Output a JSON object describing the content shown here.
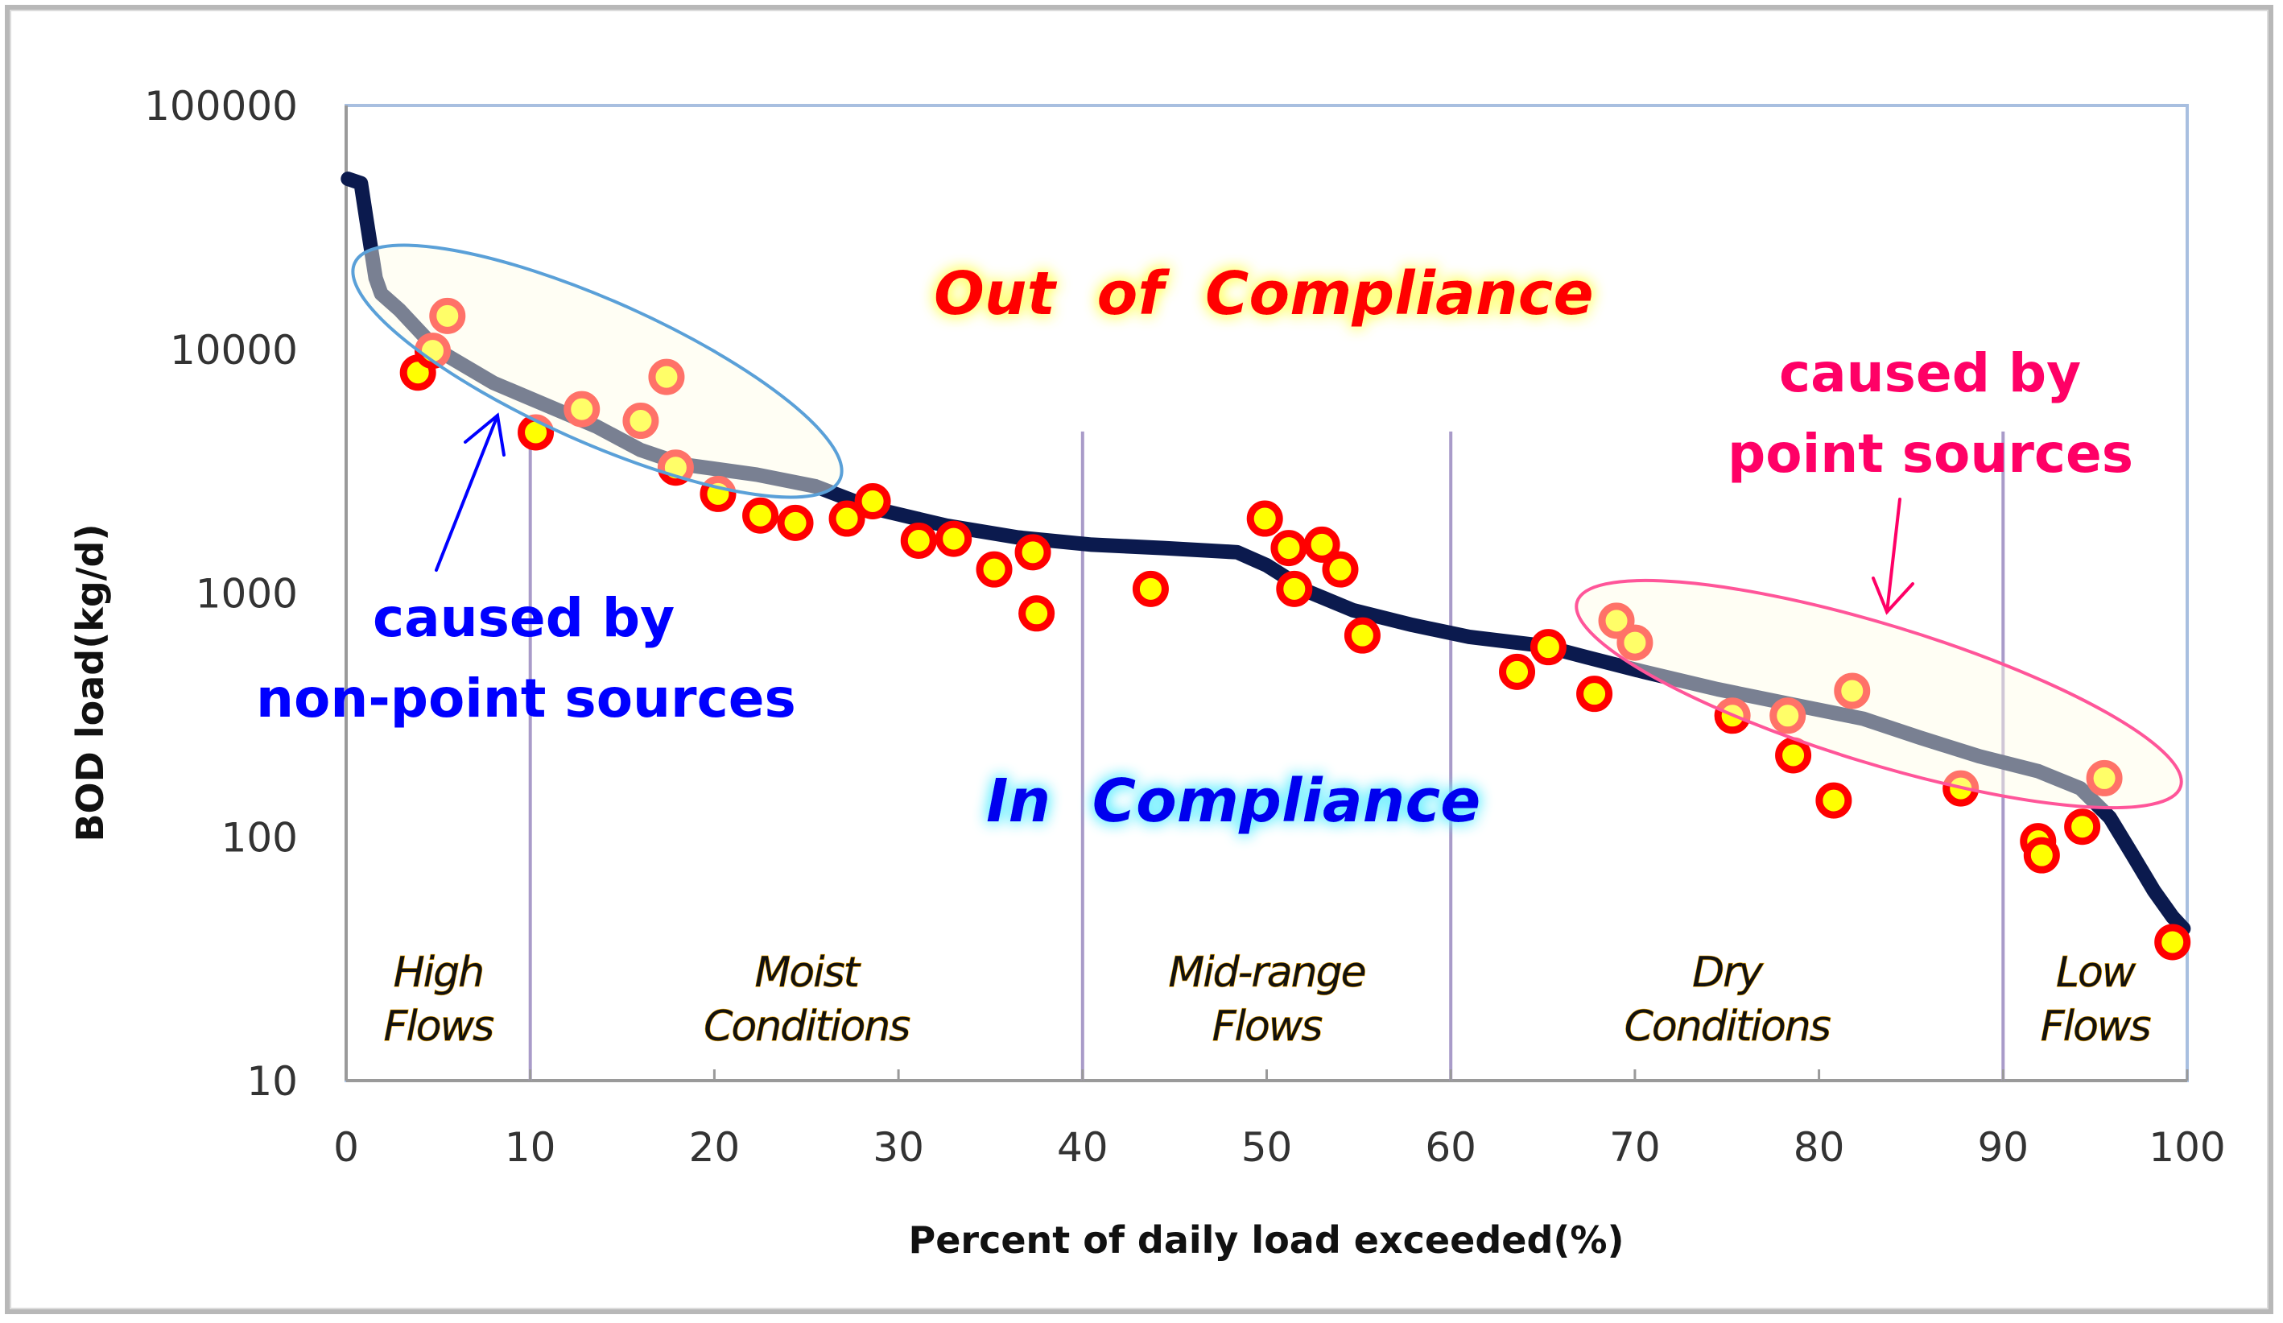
{
  "chart_data": {
    "type": "scatter",
    "title": "",
    "xlabel": "Percent of daily load exceeded(%)",
    "ylabel": "BOD load(kg/d)",
    "xlim": [
      0,
      100
    ],
    "ylim": [
      10,
      100000
    ],
    "yscale": "log",
    "x_ticks": [
      0,
      10,
      20,
      30,
      40,
      50,
      60,
      70,
      80,
      90,
      100
    ],
    "x_tick_labels": [
      "0",
      "10",
      "20",
      "30",
      "40",
      "50",
      "60",
      "70",
      "80",
      "90",
      "100"
    ],
    "y_ticks": [
      10,
      100,
      1000,
      10000,
      100000
    ],
    "y_tick_labels": [
      "10",
      "100",
      "1000",
      "10000",
      "100000"
    ],
    "grid": false,
    "zone_boundaries": [
      10,
      40,
      60,
      90
    ],
    "zones": [
      {
        "line1": "High",
        "line2": "Flows",
        "x_center": 5
      },
      {
        "line1": "Moist",
        "line2": "Conditions",
        "x_center": 25
      },
      {
        "line1": "Mid-range",
        "line2": "Flows",
        "x_center": 50
      },
      {
        "line1": "Dry",
        "line2": "Conditions",
        "x_center": 75
      },
      {
        "line1": "Low",
        "line2": "Flows",
        "x_center": 95
      }
    ],
    "series": [
      {
        "name": "Load duration curve",
        "kind": "line",
        "color": "#0b1a4e",
        "x": [
          0.1,
          0.8,
          1.1,
          1.6,
          1.9,
          2.9,
          4.9,
          8,
          10.4,
          13.6,
          16,
          18.3,
          22.3,
          25.5,
          28.6,
          32.6,
          36.5,
          40.5,
          44.4,
          48.4,
          50,
          52.3,
          54.7,
          57.9,
          61,
          65,
          67.4,
          70.5,
          74.5,
          78.4,
          82.4,
          85.5,
          88.7,
          91.9,
          94.2,
          95.8,
          97,
          98.2,
          99.2,
          99.8
        ],
        "y": [
          50000,
          48000,
          34100,
          19600,
          16900,
          14500,
          10000,
          7280,
          6100,
          4820,
          3860,
          3370,
          3060,
          2740,
          2230,
          1890,
          1690,
          1580,
          1530,
          1470,
          1300,
          1010,
          850,
          740,
          661,
          608,
          545,
          475,
          403,
          351,
          305,
          255,
          214,
          186,
          158,
          120,
          85,
          60,
          47,
          42
        ]
      },
      {
        "name": "Observed loads",
        "kind": "scatter",
        "fill": "#ffff00",
        "stroke": "#ff0000",
        "x": [
          3.9,
          4.7,
          5.5,
          10.3,
          12.8,
          16,
          17.4,
          17.9,
          20.2,
          22.5,
          24.4,
          27.2,
          28.6,
          31.1,
          33,
          35.2,
          37.3,
          37.5,
          43.7,
          49.9,
          51.2,
          51.5,
          53,
          54,
          55.2,
          63.6,
          65.3,
          67.8,
          69,
          70,
          75.3,
          78.3,
          78.6,
          80.8,
          81.8,
          87.7,
          91.9,
          92.1,
          94.3,
          95.5,
          99.2
        ],
        "y": [
          8020,
          9860,
          13700,
          4560,
          5680,
          5090,
          7700,
          3270,
          2550,
          2080,
          1940,
          2020,
          2380,
          1640,
          1670,
          1250,
          1470,
          825,
          1040,
          2020,
          1530,
          1040,
          1580,
          1250,
          670,
          475,
          600,
          386,
          770,
          626,
          314,
          314,
          216,
          141,
          397,
          158,
          96,
          84,
          110,
          174,
          37
        ]
      }
    ],
    "annotations": {
      "out_of_compliance": "Out  of  Compliance",
      "in_compliance": "In  Compliance",
      "nonpoint_line1": "caused by",
      "nonpoint_line2": "non-point sources",
      "point_line1": "caused by",
      "point_line2": "point sources"
    },
    "colors": {
      "curve": "#0b1a4e",
      "curve_in_ellipse": "#5b6b86",
      "marker_fill": "#ffff00",
      "marker_stroke": "#ff0000",
      "out_text": "#ff0000",
      "out_glow": "#ffff66",
      "in_text": "#0000ee",
      "in_glow": "#66eeff",
      "nonpoint_text": "#0000ff",
      "point_text": "#ff0066",
      "ellipse_fill": "#fffde6",
      "ellipse1_stroke": "#5aa0d8",
      "ellipse2_stroke": "#ff5599",
      "zone_line": "#a99bc9",
      "plot_border": "#a8bfe0"
    }
  }
}
